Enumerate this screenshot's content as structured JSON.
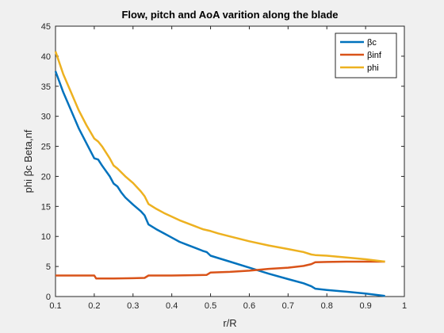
{
  "chart_data": {
    "type": "line",
    "title": "Flow, pitch and AoA varition along the blade",
    "xlabel": "r/R",
    "ylabel": "phi βc Beta,nf",
    "xlim": [
      0.1,
      1
    ],
    "ylim": [
      0,
      45
    ],
    "xticks": [
      "0.1",
      "0.2",
      "0.3",
      "0.4",
      "0.5",
      "0.6",
      "0.7",
      "0.8",
      "0.9",
      "1"
    ],
    "yticks": [
      "0",
      "5",
      "10",
      "15",
      "20",
      "25",
      "30",
      "35",
      "40",
      "45"
    ],
    "grid": false,
    "legend_position": "top-right",
    "series": [
      {
        "name": "βc",
        "color": "#0072BD",
        "x": [
          0.1,
          0.12,
          0.14,
          0.16,
          0.18,
          0.2,
          0.21,
          0.22,
          0.24,
          0.25,
          0.26,
          0.27,
          0.28,
          0.3,
          0.32,
          0.33,
          0.34,
          0.36,
          0.38,
          0.4,
          0.42,
          0.44,
          0.46,
          0.48,
          0.49,
          0.5,
          0.52,
          0.55,
          0.6,
          0.65,
          0.7,
          0.74,
          0.76,
          0.77,
          0.8,
          0.85,
          0.9,
          0.95
        ],
        "y": [
          37.5,
          34.0,
          31.0,
          28.0,
          25.5,
          23.0,
          22.8,
          21.8,
          20.0,
          18.8,
          18.3,
          17.3,
          16.5,
          15.3,
          14.2,
          13.5,
          12.0,
          11.2,
          10.5,
          9.8,
          9.1,
          8.6,
          8.1,
          7.6,
          7.4,
          6.8,
          6.4,
          5.8,
          4.8,
          3.8,
          2.9,
          2.2,
          1.7,
          1.3,
          1.1,
          0.8,
          0.5,
          0.1
        ]
      },
      {
        "name": "βinf",
        "color": "#D95319",
        "x": [
          0.1,
          0.15,
          0.2,
          0.205,
          0.25,
          0.3,
          0.33,
          0.34,
          0.4,
          0.45,
          0.49,
          0.5,
          0.55,
          0.6,
          0.65,
          0.7,
          0.74,
          0.76,
          0.77,
          0.8,
          0.85,
          0.9,
          0.95
        ],
        "y": [
          3.5,
          3.5,
          3.5,
          3.0,
          3.0,
          3.05,
          3.1,
          3.5,
          3.5,
          3.55,
          3.6,
          4.0,
          4.1,
          4.3,
          4.6,
          4.8,
          5.1,
          5.4,
          5.7,
          5.75,
          5.8,
          5.8,
          5.8
        ]
      },
      {
        "name": "phi",
        "color": "#EDB120",
        "x": [
          0.1,
          0.12,
          0.14,
          0.16,
          0.18,
          0.2,
          0.21,
          0.22,
          0.24,
          0.25,
          0.26,
          0.28,
          0.3,
          0.32,
          0.33,
          0.34,
          0.36,
          0.38,
          0.4,
          0.42,
          0.44,
          0.46,
          0.48,
          0.5,
          0.52,
          0.55,
          0.6,
          0.65,
          0.7,
          0.74,
          0.76,
          0.77,
          0.8,
          0.85,
          0.9,
          0.95
        ],
        "y": [
          40.8,
          37.0,
          34.0,
          31.0,
          28.5,
          26.3,
          25.8,
          25.0,
          23.0,
          21.8,
          21.3,
          20.0,
          18.9,
          17.5,
          16.7,
          15.4,
          14.6,
          13.9,
          13.3,
          12.7,
          12.2,
          11.7,
          11.2,
          10.9,
          10.5,
          10.0,
          9.2,
          8.5,
          7.9,
          7.4,
          7.0,
          6.9,
          6.8,
          6.5,
          6.2,
          5.8
        ]
      }
    ]
  }
}
